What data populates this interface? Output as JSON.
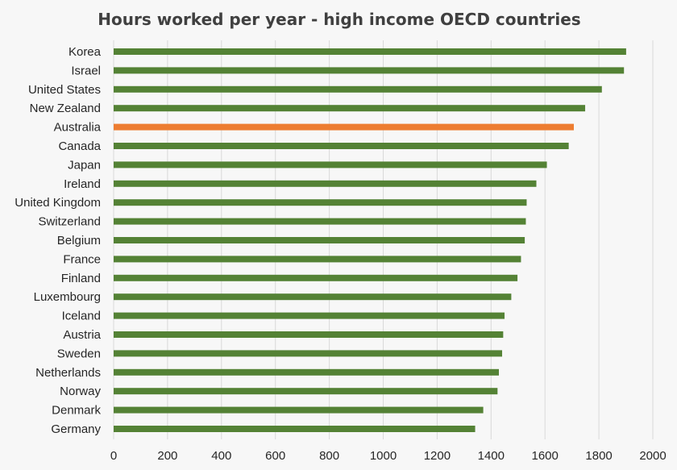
{
  "chart_data": {
    "type": "bar",
    "orientation": "horizontal",
    "title": "Hours worked per year - high income OECD countries",
    "xlabel": "",
    "ylabel": "",
    "xlim": [
      0,
      2000
    ],
    "x_ticks": [
      0,
      200,
      400,
      600,
      800,
      1000,
      1200,
      1400,
      1600,
      1800,
      2000
    ],
    "grid": true,
    "legend": "none",
    "categories": [
      "Korea",
      "Israel",
      "United States",
      "New Zealand",
      "Australia",
      "Canada",
      "Japan",
      "Ireland",
      "United Kingdom",
      "Switzerland",
      "Belgium",
      "France",
      "Finland",
      "Luxembourg",
      "Iceland",
      "Austria",
      "Sweden",
      "Netherlands",
      "Norway",
      "Denmark",
      "Germany"
    ],
    "values": [
      1901,
      1893,
      1811,
      1749,
      1707,
      1688,
      1607,
      1568,
      1532,
      1529,
      1525,
      1511,
      1498,
      1475,
      1450,
      1445,
      1441,
      1429,
      1424,
      1371,
      1341
    ],
    "highlight": {
      "category": "Australia",
      "color": "#ED7D31"
    },
    "colors": {
      "bar": "#548235",
      "highlight": "#ED7D31",
      "grid": "#D9D9D9",
      "background": "#F7F7F7"
    }
  }
}
